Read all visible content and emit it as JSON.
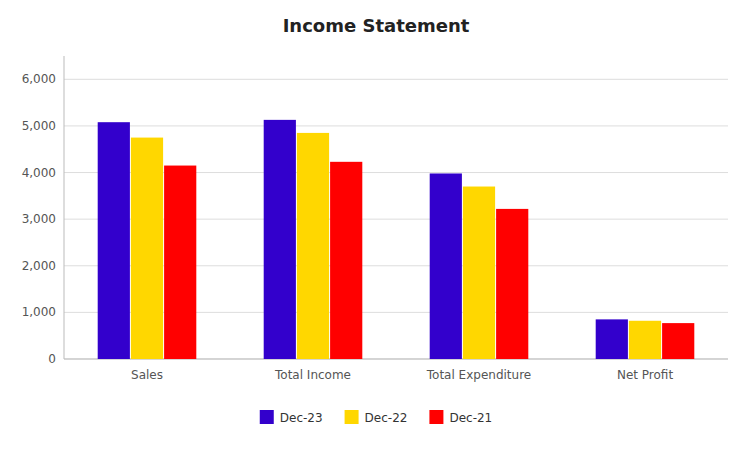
{
  "chart_data": {
    "type": "bar",
    "title": "Income Statement",
    "categories": [
      "Sales",
      "Total Income",
      "Total Expenditure",
      "Net Profit"
    ],
    "series": [
      {
        "name": "Dec-23",
        "color": "#3300CC",
        "values": [
          5080,
          5130,
          3980,
          850
        ]
      },
      {
        "name": "Dec-22",
        "color": "#FFD700",
        "values": [
          4750,
          4850,
          3700,
          820
        ]
      },
      {
        "name": "Dec-21",
        "color": "#FF0000",
        "values": [
          4150,
          4230,
          3220,
          770
        ]
      }
    ],
    "ylim": [
      0,
      6500
    ],
    "yticks": [
      0,
      {
        "value": 1000,
        "label": "1,000"
      },
      {
        "value": 2000,
        "label": "2,000"
      },
      {
        "value": 3000,
        "label": "3,000"
      },
      {
        "value": 4000,
        "label": "4,000"
      },
      {
        "value": 5000,
        "label": "5,000"
      },
      {
        "value": 6000,
        "label": "6,000"
      }
    ],
    "grid": true,
    "legend": "bottom"
  }
}
